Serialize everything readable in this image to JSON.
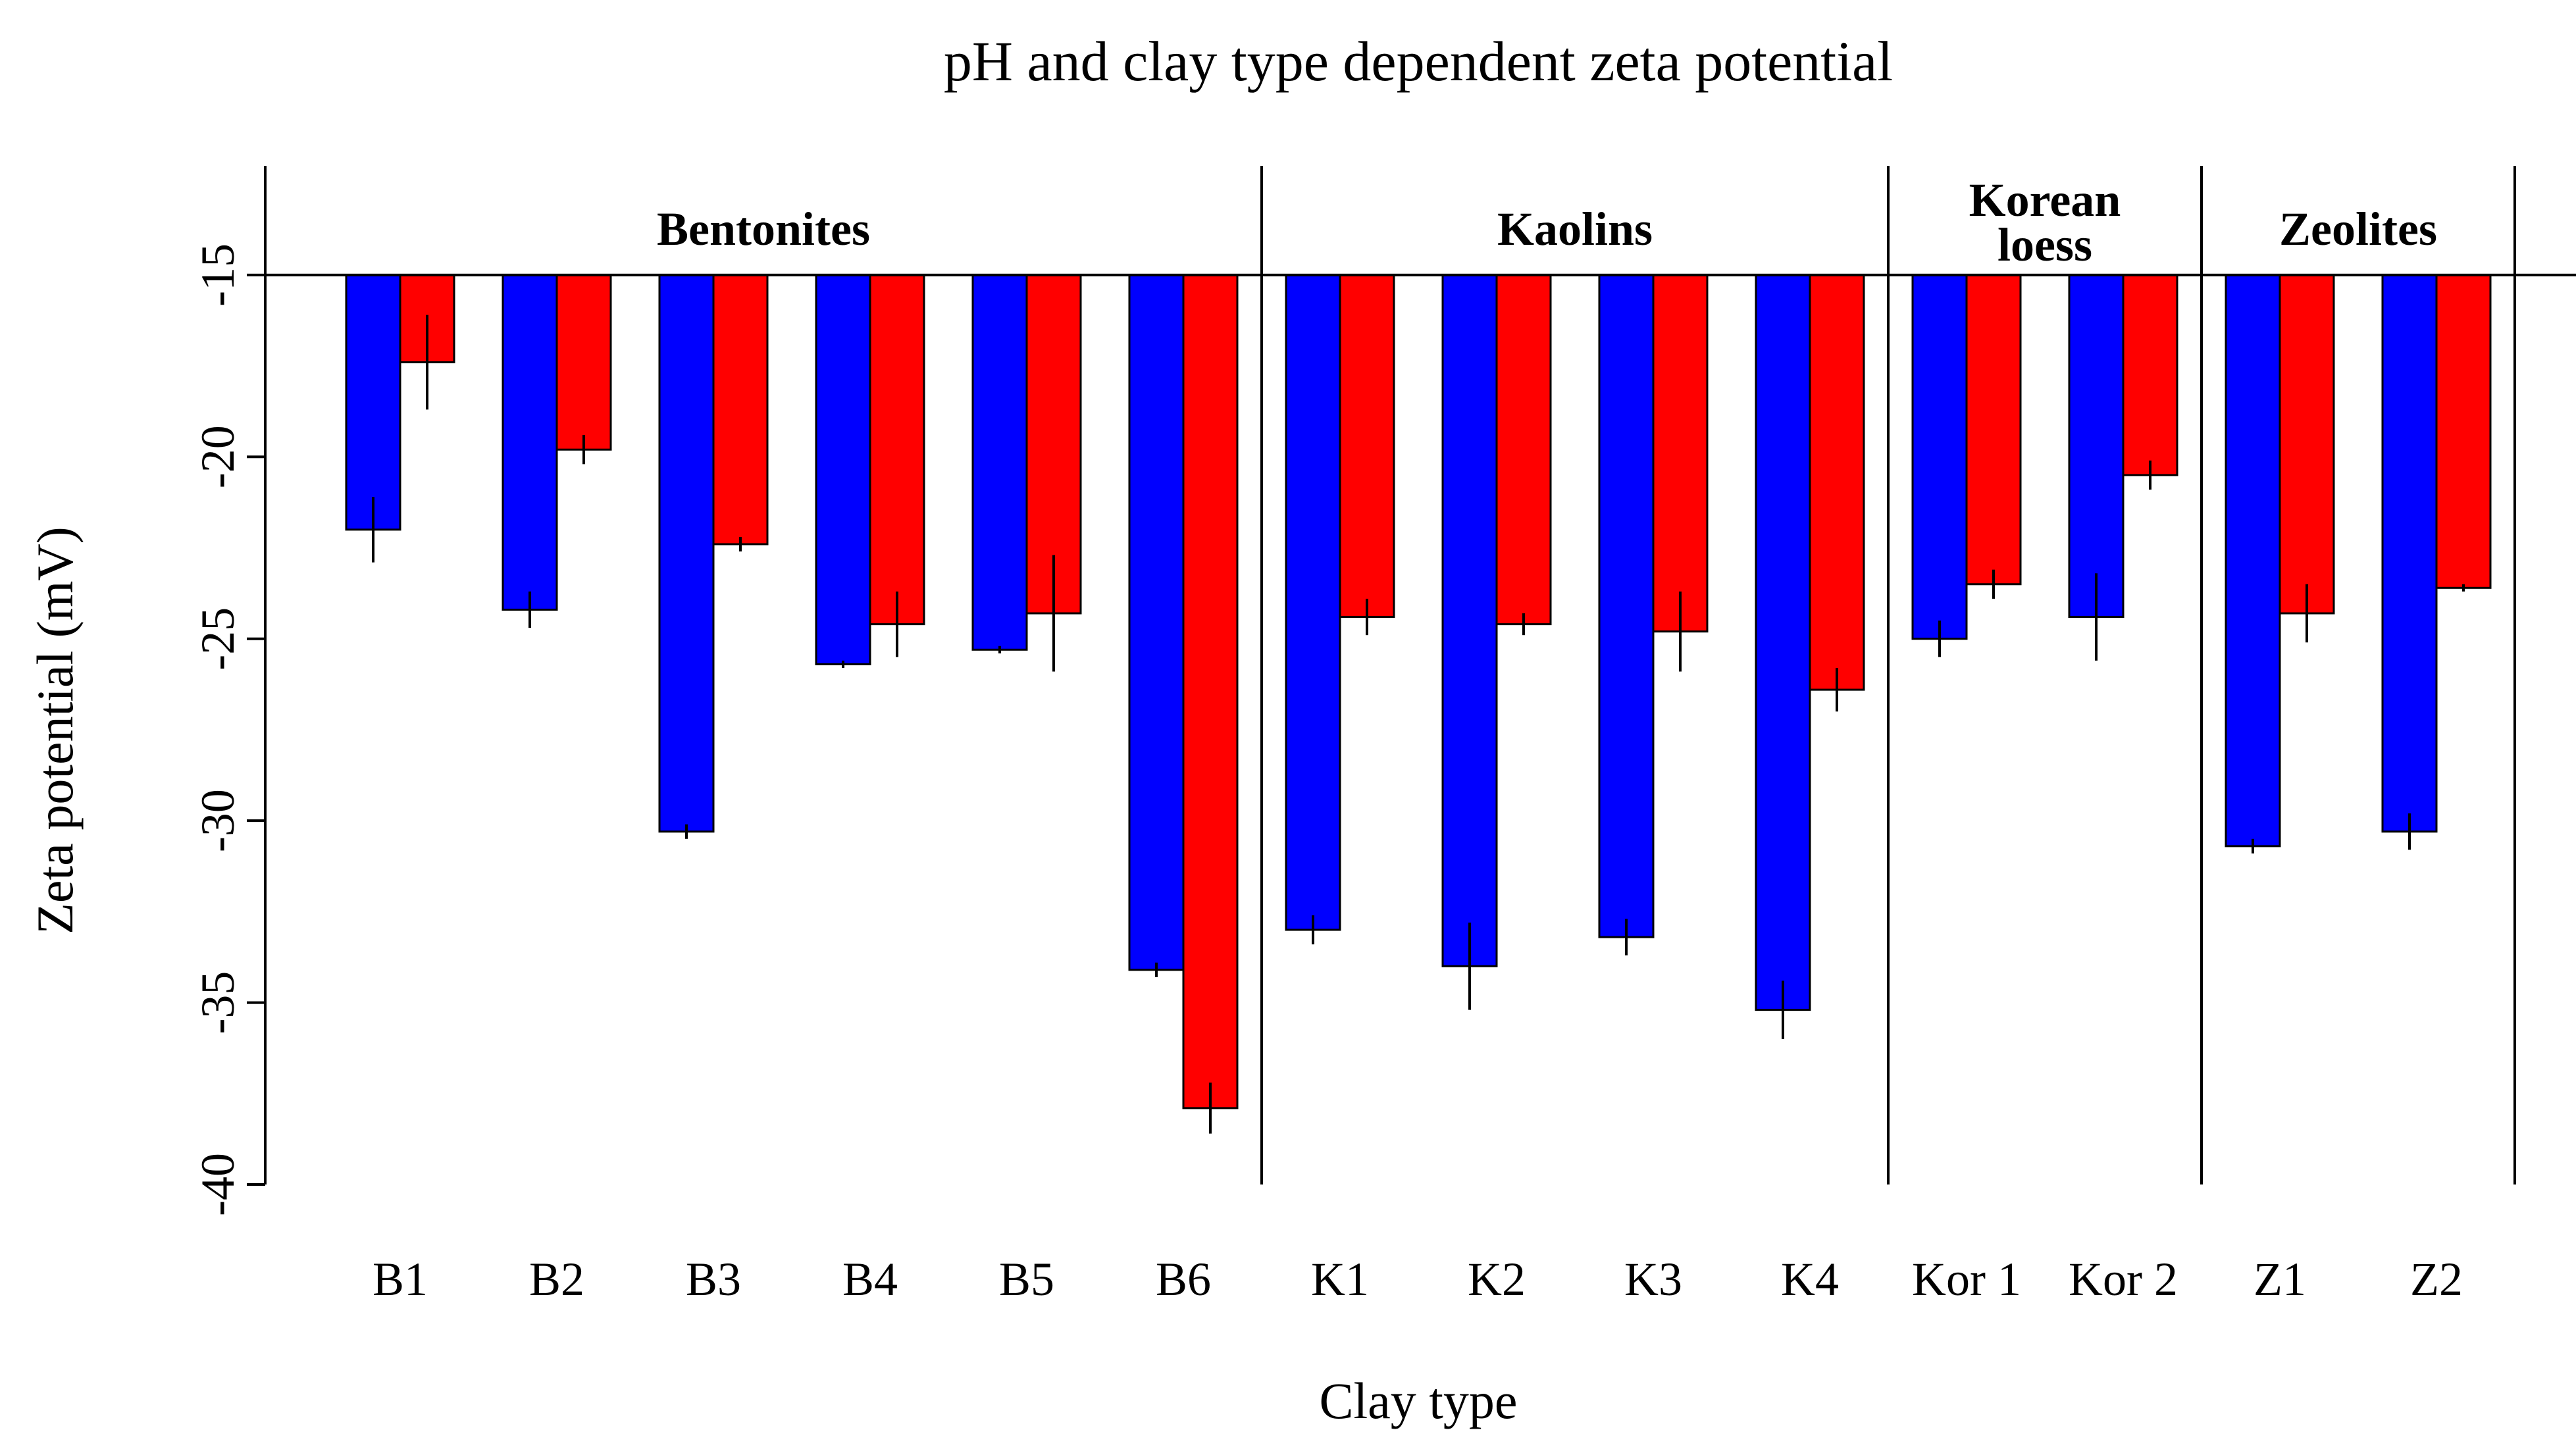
{
  "chart_data": {
    "type": "bar",
    "title": "pH and clay type dependent zeta potential",
    "xlabel": "Clay type",
    "ylabel": "Zeta potential (mV)",
    "ylim": [
      -40,
      -12
    ],
    "baseline": -15,
    "yticks": [
      "-15",
      "-20",
      "-25",
      "-30",
      "-35",
      "-40"
    ],
    "ytick_values": [
      -15,
      -20,
      -25,
      -30,
      -35,
      -40
    ],
    "categories": [
      "B1",
      "B2",
      "B3",
      "B4",
      "B5",
      "B6",
      "K1",
      "K2",
      "K3",
      "K4",
      "Kor 1",
      "Kor 2",
      "Z1",
      "Z2"
    ],
    "groups": [
      {
        "label_lines": [
          "Bentonites"
        ],
        "start": 0,
        "end": 5
      },
      {
        "label_lines": [
          "Kaolins"
        ],
        "start": 6,
        "end": 9
      },
      {
        "label_lines": [
          "Korean",
          "loess"
        ],
        "start": 10,
        "end": 11
      },
      {
        "label_lines": [
          "Zeolites"
        ],
        "start": 12,
        "end": 13
      }
    ],
    "series": [
      {
        "color": "#0000ff",
        "values": [
          -22.0,
          -24.2,
          -30.3,
          -25.7,
          -25.3,
          -34.1,
          -33.0,
          -34.0,
          -33.2,
          -35.2,
          -25.0,
          -24.4,
          -30.7,
          -30.3
        ],
        "errors": [
          0.9,
          0.5,
          0.2,
          0.1,
          0.1,
          0.2,
          0.4,
          1.2,
          0.5,
          0.8,
          0.5,
          1.2,
          0.2,
          0.5
        ]
      },
      {
        "color": "#ff0000",
        "values": [
          -17.4,
          -19.8,
          -22.4,
          -24.6,
          -24.3,
          -37.9,
          -24.4,
          -24.6,
          -24.8,
          -26.4,
          -23.5,
          -20.5,
          -24.3,
          -23.6
        ],
        "errors": [
          1.3,
          0.4,
          0.2,
          0.9,
          1.6,
          0.7,
          0.5,
          0.3,
          1.1,
          0.6,
          0.4,
          0.4,
          0.8,
          0.1
        ]
      }
    ]
  }
}
